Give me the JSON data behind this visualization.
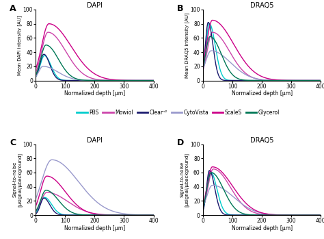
{
  "title_A": "DAPI",
  "title_B": "DRAQ5",
  "title_C": "DAPI",
  "title_D": "DRAQ5",
  "xlabel": "Normalized depth [μm]",
  "xlim": [
    0,
    400
  ],
  "ylim_AB": [
    0,
    100
  ],
  "ylim_CD": [
    0,
    100
  ],
  "legend_labels": [
    "PBS",
    "Mowiol",
    "Clearⁿ²",
    "CytoVista",
    "ScaleS",
    "Glycerol"
  ],
  "legend_colors": [
    "#00CCCC",
    "#CC44AA",
    "#1a1a6e",
    "#9999CC",
    "#CC0088",
    "#007755"
  ],
  "background_color": "#ffffff",
  "lw": 1.0
}
